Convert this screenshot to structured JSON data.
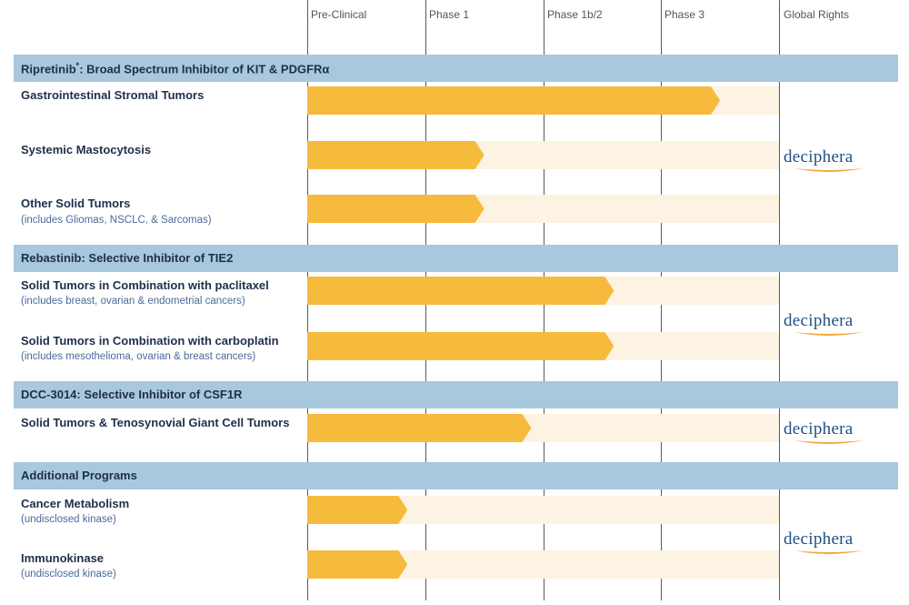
{
  "phases": [
    "Pre-Clinical",
    "Phase 1",
    "Phase 1b/2",
    "Phase 3",
    "Global Rights"
  ],
  "sections": [
    {
      "name": "Ripretinib",
      "footnote_mark": "*",
      "suffix": ": Broad Spectrum Inhibitor of KIT & PDGFRα"
    },
    {
      "name": "Rebastinib: Selective Inhibitor of TIE2",
      "footnote_mark": "",
      "suffix": ""
    },
    {
      "name": "DCC-3014: Selective Inhibitor of CSF1R",
      "footnote_mark": "",
      "suffix": ""
    },
    {
      "name": "Additional Programs",
      "footnote_mark": "",
      "suffix": ""
    }
  ],
  "programs": [
    {
      "title": "Gastrointestinal Stromal Tumors",
      "subtitle": ""
    },
    {
      "title": "Systemic Mastocytosis",
      "subtitle": ""
    },
    {
      "title": "Other Solid Tumors",
      "subtitle": "(includes Gliomas, NSCLC, & Sarcomas)"
    },
    {
      "title": "Solid Tumors in Combination with paclitaxel",
      "subtitle": "(includes breast, ovarian & endometrial cancers)"
    },
    {
      "title": "Solid Tumors in Combination with carboplatin",
      "subtitle": "(includes mesothelioma, ovarian & breast cancers)"
    },
    {
      "title": "Solid Tumors & Tenosynovial Giant Cell Tumors",
      "subtitle": ""
    },
    {
      "title": "Cancer Metabolism",
      "subtitle": "(undisclosed kinase)"
    },
    {
      "title": "Immunokinase",
      "subtitle": "(undisclosed kinase)"
    }
  ],
  "rights": {
    "holder": "deciphera",
    "count": 4
  },
  "colors": {
    "bar": "#f6bb3d",
    "track": "#fcf3e2",
    "header": "#a8c8de",
    "text": "#1e2f4a",
    "subtext": "#4a6a9c",
    "logo_text": "#1f4f86",
    "logo_swoosh": "#f2a93b"
  },
  "chart_data": {
    "type": "bar",
    "orientation": "horizontal",
    "x_scale": "phase (0 = start of Pre-Clinical, 4 = end of Phase 3)",
    "categories": [
      "Gastrointestinal Stromal Tumors",
      "Systemic Mastocytosis",
      "Other Solid Tumors",
      "Solid Tumors in Combination with paclitaxel",
      "Solid Tumors in Combination with carboplatin",
      "Solid Tumors & Tenosynovial Giant Cell Tumors",
      "Cancer Metabolism",
      "Immunokinase"
    ],
    "values": [
      3.5,
      1.5,
      1.5,
      2.6,
      2.6,
      1.9,
      0.85,
      0.85
    ],
    "xlim": [
      0,
      4
    ],
    "x_ticks": [
      "Pre-Clinical",
      "Phase 1",
      "Phase 1b/2",
      "Phase 3"
    ],
    "groups": [
      {
        "name": "Ripretinib",
        "rows": [
          0,
          1,
          2
        ]
      },
      {
        "name": "Rebastinib",
        "rows": [
          3,
          4
        ]
      },
      {
        "name": "DCC-3014",
        "rows": [
          5
        ]
      },
      {
        "name": "Additional Programs",
        "rows": [
          6,
          7
        ]
      }
    ],
    "grid": true,
    "legend": "none"
  }
}
